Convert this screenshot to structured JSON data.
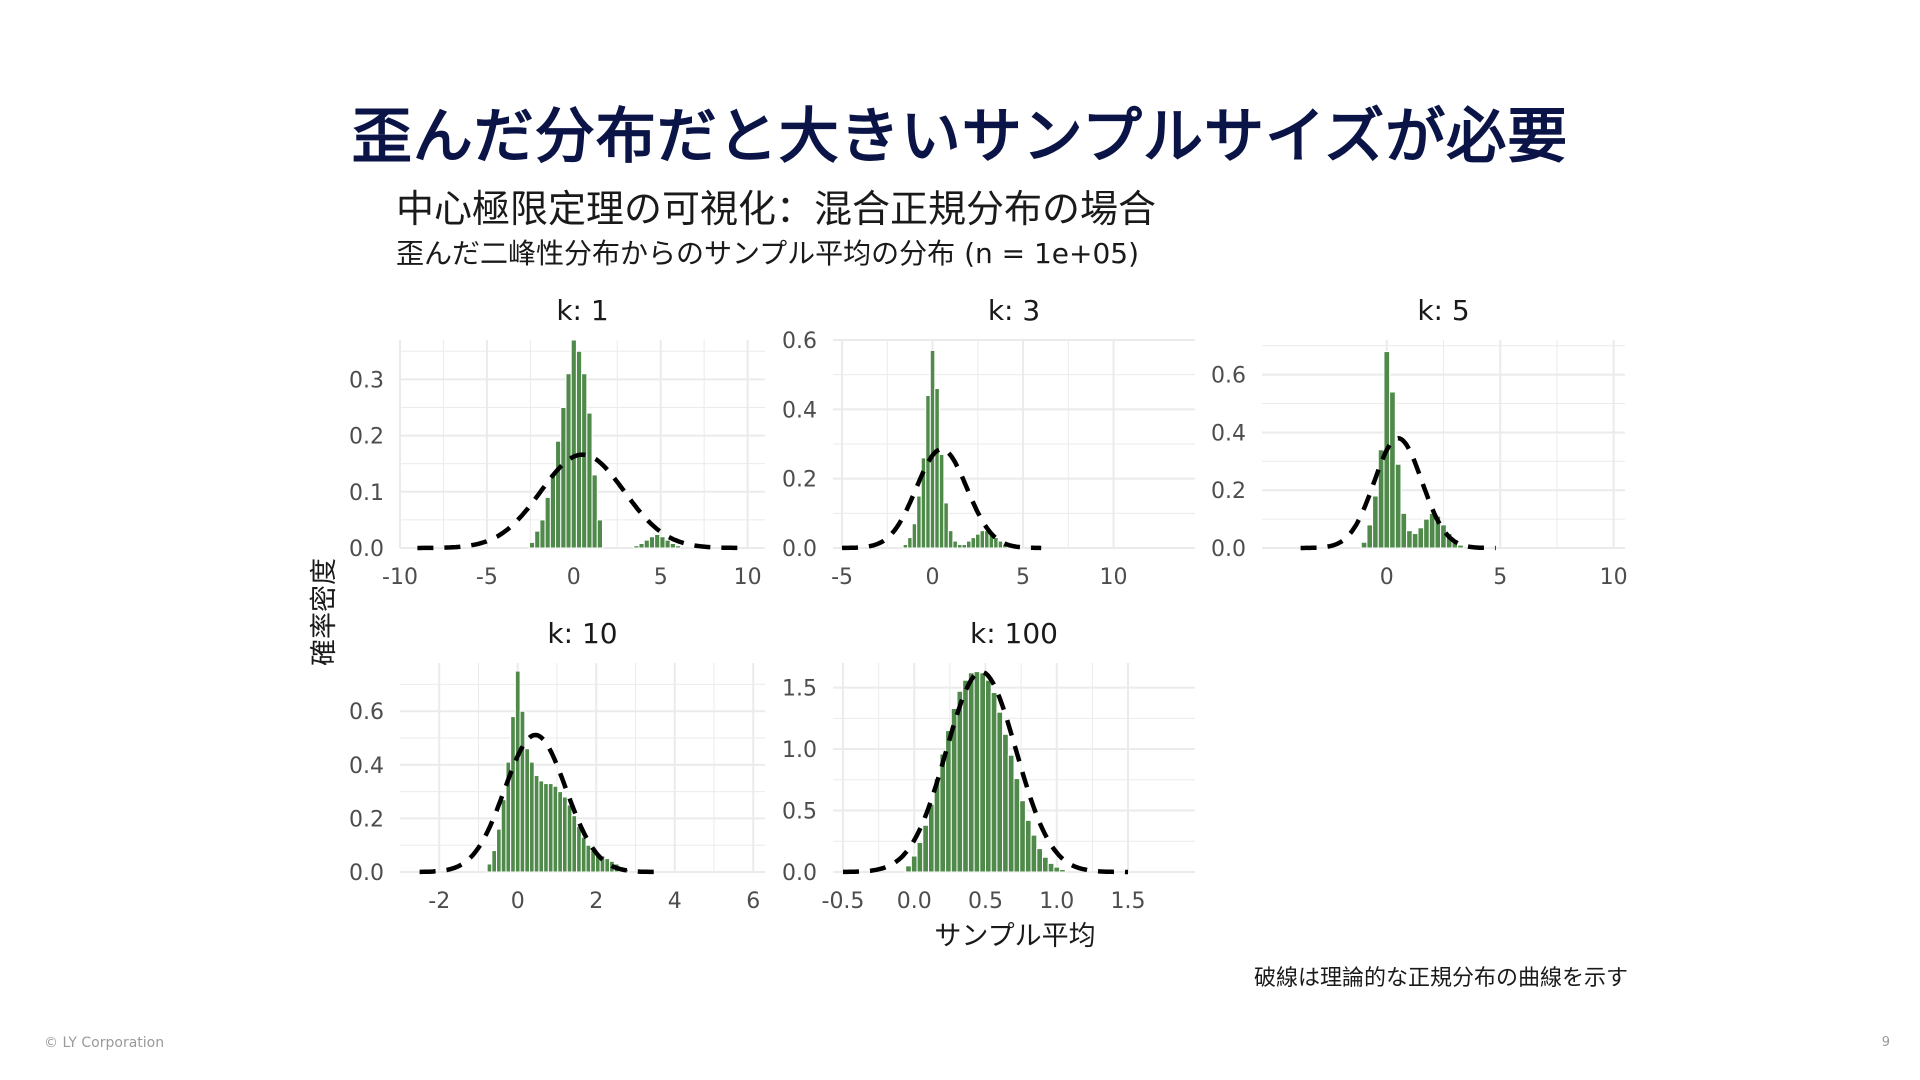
{
  "slide": {
    "title": "歪んだ分布だと大きいサンプルサイズが必要",
    "footer": "© LY Corporation",
    "page_number": "9"
  },
  "colors": {
    "title": "#0b1446",
    "bars": "#4f8a4a",
    "curve": "#000000",
    "grid": "#ebebeb",
    "tick_text": "#4d4d4d"
  },
  "chart_data": {
    "type": "bar",
    "title": "中心極限定理の可視化：混合正規分布の場合",
    "subtitle": "歪んだ二峰性分布からのサンプル平均の分布 (n = 1e+05)",
    "xlabel": "サンプル平均",
    "ylabel": "確率密度",
    "caption": "破線は理論的な正規分布の曲線を示す",
    "grid": true,
    "legend": "none",
    "facets": [
      {
        "label": "k: 1",
        "xlim": [
          -10,
          11
        ],
        "ylim": [
          0,
          0.37
        ],
        "xticks": [
          -10,
          -5,
          0,
          5,
          10
        ],
        "yticks": [
          0.0,
          0.1,
          0.2,
          0.3
        ],
        "ytick_labels": [
          "0.0",
          "0.1",
          "0.2",
          "0.3"
        ],
        "bin_width": 0.3,
        "bins": [
          [
            -2.4,
            0.01
          ],
          [
            -2.1,
            0.03
          ],
          [
            -1.8,
            0.05
          ],
          [
            -1.5,
            0.09
          ],
          [
            -1.2,
            0.13
          ],
          [
            -0.9,
            0.19
          ],
          [
            -0.6,
            0.25
          ],
          [
            -0.3,
            0.31
          ],
          [
            0.0,
            0.37
          ],
          [
            0.3,
            0.35
          ],
          [
            0.6,
            0.31
          ],
          [
            0.9,
            0.24
          ],
          [
            1.2,
            0.13
          ],
          [
            1.5,
            0.05
          ],
          [
            3.6,
            0.004
          ],
          [
            3.9,
            0.008
          ],
          [
            4.2,
            0.014
          ],
          [
            4.5,
            0.02
          ],
          [
            4.8,
            0.024
          ],
          [
            5.1,
            0.02
          ],
          [
            5.4,
            0.014
          ],
          [
            5.7,
            0.008
          ],
          [
            6.0,
            0.004
          ]
        ],
        "curve": {
          "mean": 0.5,
          "sd": 2.4,
          "x_range": [
            -9.0,
            10.0
          ]
        }
      },
      {
        "label": "k: 3",
        "xlim": [
          -5.5,
          14.5
        ],
        "ylim": [
          0,
          0.6
        ],
        "xticks": [
          -5,
          0,
          5,
          10
        ],
        "yticks": [
          0.0,
          0.2,
          0.4,
          0.6
        ],
        "ytick_labels": [
          "0.0",
          "0.2",
          "0.4",
          "0.6"
        ],
        "bin_width": 0.25,
        "bins": [
          [
            -1.5,
            0.01
          ],
          [
            -1.25,
            0.03
          ],
          [
            -1.0,
            0.07
          ],
          [
            -0.75,
            0.15
          ],
          [
            -0.5,
            0.26
          ],
          [
            -0.25,
            0.44
          ],
          [
            0.0,
            0.57
          ],
          [
            0.25,
            0.46
          ],
          [
            0.5,
            0.27
          ],
          [
            0.75,
            0.13
          ],
          [
            1.0,
            0.05
          ],
          [
            1.25,
            0.02
          ],
          [
            1.5,
            0.01
          ],
          [
            1.75,
            0.01
          ],
          [
            2.0,
            0.02
          ],
          [
            2.25,
            0.03
          ],
          [
            2.5,
            0.04
          ],
          [
            2.75,
            0.05
          ],
          [
            3.0,
            0.05
          ],
          [
            3.25,
            0.04
          ],
          [
            3.5,
            0.03
          ],
          [
            3.75,
            0.02
          ],
          [
            4.0,
            0.01
          ],
          [
            4.25,
            0.005
          ]
        ],
        "curve": {
          "mean": 0.5,
          "sd": 1.4,
          "x_range": [
            -5.0,
            6.0
          ]
        }
      },
      {
        "label": "k: 5",
        "xlim": [
          -5.5,
          10.5
        ],
        "ylim": [
          0,
          0.72
        ],
        "xticks": [
          0,
          5,
          10
        ],
        "yticks": [
          0.0,
          0.2,
          0.4,
          0.6
        ],
        "ytick_labels": [
          "0.0",
          "0.2",
          "0.4",
          "0.6"
        ],
        "bin_width": 0.25,
        "bins": [
          [
            -1.0,
            0.02
          ],
          [
            -0.75,
            0.08
          ],
          [
            -0.5,
            0.18
          ],
          [
            -0.25,
            0.34
          ],
          [
            0.0,
            0.68
          ],
          [
            0.25,
            0.54
          ],
          [
            0.5,
            0.29
          ],
          [
            0.75,
            0.12
          ],
          [
            1.0,
            0.06
          ],
          [
            1.25,
            0.05
          ],
          [
            1.5,
            0.07
          ],
          [
            1.75,
            0.1
          ],
          [
            2.0,
            0.12
          ],
          [
            2.25,
            0.11
          ],
          [
            2.5,
            0.08
          ],
          [
            2.75,
            0.05
          ],
          [
            3.0,
            0.02
          ],
          [
            3.25,
            0.01
          ]
        ],
        "curve": {
          "mean": 0.5,
          "sd": 1.05,
          "x_range": [
            -3.8,
            4.8
          ]
        }
      },
      {
        "label": "k: 10",
        "xlim": [
          -3.0,
          6.3
        ],
        "ylim": [
          0,
          0.78
        ],
        "xticks": [
          -2,
          0,
          2,
          4,
          6
        ],
        "yticks": [
          0.0,
          0.2,
          0.4,
          0.6
        ],
        "ytick_labels": [
          "0.0",
          "0.2",
          "0.4",
          "0.6"
        ],
        "bin_width": 0.12,
        "bins": [
          [
            -0.72,
            0.03
          ],
          [
            -0.6,
            0.08
          ],
          [
            -0.48,
            0.16
          ],
          [
            -0.36,
            0.27
          ],
          [
            -0.24,
            0.41
          ],
          [
            -0.12,
            0.58
          ],
          [
            0.0,
            0.75
          ],
          [
            0.12,
            0.6
          ],
          [
            0.24,
            0.46
          ],
          [
            0.36,
            0.41
          ],
          [
            0.48,
            0.36
          ],
          [
            0.6,
            0.34
          ],
          [
            0.72,
            0.33
          ],
          [
            0.84,
            0.33
          ],
          [
            0.96,
            0.32
          ],
          [
            1.08,
            0.3
          ],
          [
            1.2,
            0.28
          ],
          [
            1.32,
            0.25
          ],
          [
            1.44,
            0.21
          ],
          [
            1.56,
            0.17
          ],
          [
            1.68,
            0.13
          ],
          [
            1.8,
            0.1
          ],
          [
            1.92,
            0.08
          ],
          [
            2.04,
            0.07
          ],
          [
            2.16,
            0.06
          ],
          [
            2.28,
            0.05
          ],
          [
            2.4,
            0.04
          ],
          [
            2.52,
            0.03
          ],
          [
            2.64,
            0.02
          ],
          [
            2.76,
            0.01
          ]
        ],
        "curve": {
          "mean": 0.45,
          "sd": 0.78,
          "x_range": [
            -2.5,
            3.5
          ]
        }
      },
      {
        "label": "k: 100",
        "xlim": [
          -0.57,
          1.97
        ],
        "ylim": [
          0,
          1.7
        ],
        "xticks": [
          -0.5,
          0.0,
          0.5,
          1.0,
          1.5
        ],
        "yticks": [
          0.0,
          0.5,
          1.0,
          1.5
        ],
        "xtick_labels": [
          "-0.5",
          "0.0",
          "0.5",
          "1.0",
          "1.5"
        ],
        "ytick_labels": [
          "0.0",
          "0.5",
          "1.0",
          "1.5"
        ],
        "bin_width": 0.04,
        "bins": [
          [
            -0.04,
            0.05
          ],
          [
            0.0,
            0.13
          ],
          [
            0.04,
            0.24
          ],
          [
            0.08,
            0.38
          ],
          [
            0.12,
            0.55
          ],
          [
            0.16,
            0.76
          ],
          [
            0.2,
            0.96
          ],
          [
            0.24,
            1.15
          ],
          [
            0.28,
            1.33
          ],
          [
            0.32,
            1.47
          ],
          [
            0.36,
            1.56
          ],
          [
            0.4,
            1.62
          ],
          [
            0.44,
            1.63
          ],
          [
            0.48,
            1.62
          ],
          [
            0.52,
            1.56
          ],
          [
            0.56,
            1.46
          ],
          [
            0.6,
            1.3
          ],
          [
            0.64,
            1.12
          ],
          [
            0.68,
            0.95
          ],
          [
            0.72,
            0.76
          ],
          [
            0.76,
            0.58
          ],
          [
            0.8,
            0.42
          ],
          [
            0.84,
            0.3
          ],
          [
            0.88,
            0.19
          ],
          [
            0.92,
            0.12
          ],
          [
            0.96,
            0.07
          ],
          [
            1.0,
            0.04
          ],
          [
            1.04,
            0.02
          ]
        ],
        "curve": {
          "mean": 0.47,
          "sd": 0.245,
          "x_range": [
            -0.5,
            1.5
          ]
        }
      }
    ]
  }
}
